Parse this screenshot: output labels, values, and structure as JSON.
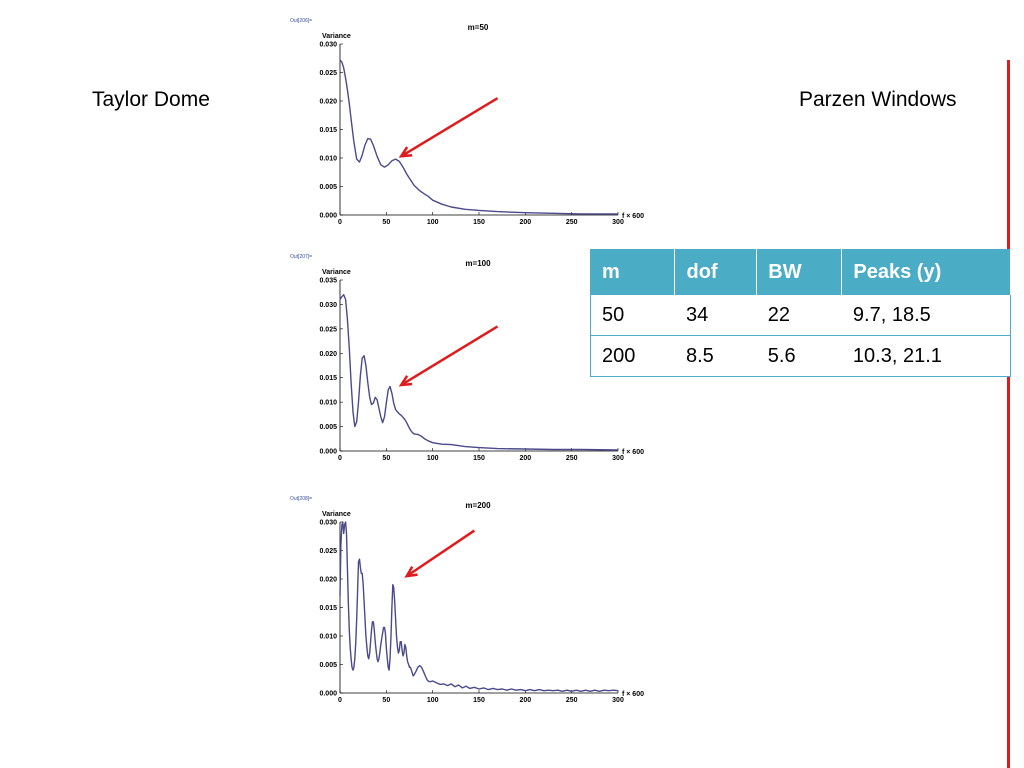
{
  "labels": {
    "left": "Taylor Dome",
    "right": "Parzen Windows"
  },
  "colors": {
    "curve": "#4a4a8c",
    "arrow": "#e01b1b",
    "table_header": "#4bacc6",
    "divider": "#e01b1b"
  },
  "table": {
    "headers": [
      "m",
      "dof",
      "BW",
      "Peaks (y)"
    ],
    "rows": [
      [
        "50",
        "34",
        "22",
        "9.7, 18.5"
      ],
      [
        "200",
        "8.5",
        "5.6",
        "10.3, 21.1"
      ]
    ]
  },
  "chart_data": [
    {
      "type": "line",
      "out_tag": "Out[206]=",
      "title": "m=50",
      "ylabel": "Variance",
      "xlabel": "f × 600",
      "xlim": [
        0,
        300
      ],
      "ylim": [
        0,
        0.03
      ],
      "xticks": [
        "0",
        "50",
        "100",
        "150",
        "200",
        "250",
        "300"
      ],
      "yticks": [
        "0.000",
        "0.005",
        "0.010",
        "0.015",
        "0.020",
        "0.025",
        "0.030"
      ],
      "x": [
        0,
        2,
        4,
        6,
        8,
        10,
        12,
        15,
        18,
        21,
        24,
        27,
        30,
        33,
        36,
        40,
        44,
        48,
        52,
        56,
        60,
        64,
        68,
        72,
        76,
        80,
        85,
        90,
        95,
        100,
        110,
        120,
        135,
        150,
        170,
        200,
        230,
        260,
        300
      ],
      "y": [
        0.0272,
        0.0268,
        0.0258,
        0.024,
        0.022,
        0.0195,
        0.0168,
        0.0128,
        0.0098,
        0.0093,
        0.0105,
        0.0123,
        0.0134,
        0.0133,
        0.0122,
        0.0103,
        0.0088,
        0.0084,
        0.0088,
        0.0095,
        0.0098,
        0.0094,
        0.0084,
        0.0072,
        0.0062,
        0.0052,
        0.0044,
        0.0038,
        0.0033,
        0.0026,
        0.0019,
        0.0014,
        0.001,
        0.0008,
        0.0006,
        0.0004,
        0.0003,
        0.0002,
        0.0002
      ],
      "arrow": {
        "from": [
          170,
          0.0205
        ],
        "to": [
          66,
          0.0103
        ]
      }
    },
    {
      "type": "line",
      "out_tag": "Out[207]=",
      "title": "m=100",
      "ylabel": "Variance",
      "xlabel": "f × 600",
      "xlim": [
        0,
        300
      ],
      "ylim": [
        0,
        0.035
      ],
      "xticks": [
        "0",
        "50",
        "100",
        "150",
        "200",
        "250",
        "300"
      ],
      "yticks": [
        "0.000",
        "0.005",
        "0.010",
        "0.015",
        "0.020",
        "0.025",
        "0.030",
        "0.035"
      ],
      "x": [
        0,
        2,
        4,
        6,
        8,
        10,
        12,
        14,
        16,
        18,
        20,
        22,
        24,
        26,
        28,
        30,
        32,
        34,
        36,
        38,
        40,
        42,
        44,
        46,
        48,
        50,
        52,
        54,
        56,
        58,
        60,
        62,
        64,
        66,
        68,
        70,
        72,
        74,
        76,
        78,
        80,
        84,
        88,
        92,
        96,
        100,
        110,
        120,
        135,
        150,
        170,
        200,
        230,
        260,
        300
      ],
      "y": [
        0.031,
        0.0316,
        0.032,
        0.031,
        0.027,
        0.021,
        0.014,
        0.008,
        0.005,
        0.006,
        0.01,
        0.0155,
        0.019,
        0.0195,
        0.0175,
        0.014,
        0.011,
        0.0095,
        0.0098,
        0.011,
        0.0105,
        0.0088,
        0.007,
        0.0058,
        0.007,
        0.0098,
        0.0125,
        0.0132,
        0.0118,
        0.0098,
        0.0085,
        0.008,
        0.0076,
        0.0073,
        0.0069,
        0.0064,
        0.0058,
        0.005,
        0.0043,
        0.0038,
        0.0035,
        0.0034,
        0.003,
        0.0024,
        0.002,
        0.0017,
        0.0014,
        0.0013,
        0.0009,
        0.0007,
        0.0005,
        0.0004,
        0.0003,
        0.0003,
        0.0002
      ],
      "arrow": {
        "from": [
          170,
          0.0255
        ],
        "to": [
          66,
          0.0135
        ]
      }
    },
    {
      "type": "line",
      "out_tag": "Out[208]=",
      "title": "m=200",
      "ylabel": "Variance",
      "xlabel": "f × 600",
      "xlim": [
        0,
        300
      ],
      "ylim": [
        0,
        0.03
      ],
      "xticks": [
        "0",
        "50",
        "100",
        "150",
        "200",
        "250",
        "300"
      ],
      "yticks": [
        "0.000",
        "0.005",
        "0.010",
        "0.015",
        "0.020",
        "0.025",
        "0.030"
      ],
      "x": [
        0,
        1,
        2,
        3,
        4,
        5,
        6,
        7,
        8,
        9,
        10,
        11,
        12,
        13,
        14,
        15,
        16,
        17,
        18,
        19,
        20,
        21,
        22,
        23,
        24,
        25,
        26,
        27,
        28,
        29,
        30,
        31,
        32,
        33,
        34,
        35,
        36,
        37,
        38,
        39,
        40,
        41,
        42,
        43,
        44,
        45,
        46,
        47,
        48,
        49,
        50,
        51,
        52,
        53,
        54,
        55,
        56,
        57,
        58,
        59,
        60,
        61,
        62,
        63,
        64,
        65,
        66,
        67,
        68,
        69,
        70,
        71,
        72,
        73,
        74,
        75,
        76,
        77,
        78,
        79,
        80,
        82,
        84,
        86,
        88,
        90,
        92,
        94,
        96,
        98,
        100,
        104,
        108,
        112,
        116,
        120,
        124,
        128,
        132,
        136,
        140,
        145,
        150,
        155,
        160,
        165,
        170,
        175,
        180,
        185,
        190,
        195,
        200,
        205,
        210,
        215,
        220,
        225,
        230,
        235,
        240,
        245,
        250,
        255,
        260,
        265,
        270,
        275,
        280,
        285,
        290,
        295,
        300
      ],
      "y": [
        0.017,
        0.026,
        0.0295,
        0.03,
        0.028,
        0.0295,
        0.03,
        0.028,
        0.022,
        0.016,
        0.011,
        0.008,
        0.006,
        0.0045,
        0.004,
        0.0045,
        0.006,
        0.009,
        0.013,
        0.018,
        0.023,
        0.0235,
        0.022,
        0.021,
        0.021,
        0.019,
        0.016,
        0.013,
        0.01,
        0.008,
        0.0065,
        0.006,
        0.007,
        0.009,
        0.011,
        0.0125,
        0.0125,
        0.011,
        0.009,
        0.0075,
        0.006,
        0.0055,
        0.006,
        0.007,
        0.0085,
        0.0095,
        0.0105,
        0.0115,
        0.0115,
        0.0105,
        0.008,
        0.006,
        0.0045,
        0.004,
        0.006,
        0.01,
        0.015,
        0.019,
        0.0185,
        0.016,
        0.013,
        0.01,
        0.008,
        0.007,
        0.0075,
        0.009,
        0.009,
        0.0075,
        0.0065,
        0.007,
        0.0085,
        0.008,
        0.0065,
        0.0055,
        0.005,
        0.0045,
        0.0045,
        0.004,
        0.0035,
        0.003,
        0.0032,
        0.0038,
        0.0045,
        0.0048,
        0.0045,
        0.0038,
        0.003,
        0.0023,
        0.002,
        0.002,
        0.0021,
        0.0018,
        0.0015,
        0.0016,
        0.0013,
        0.0016,
        0.0011,
        0.0014,
        0.0009,
        0.0012,
        0.0008,
        0.001,
        0.0007,
        0.0009,
        0.0006,
        0.0008,
        0.0006,
        0.0007,
        0.0005,
        0.0007,
        0.0005,
        0.0006,
        0.0004,
        0.0006,
        0.0004,
        0.0006,
        0.0004,
        0.0005,
        0.0004,
        0.0005,
        0.0003,
        0.0005,
        0.0003,
        0.0005,
        0.0003,
        0.0005,
        0.0003,
        0.0005,
        0.0003,
        0.0005,
        0.0004,
        0.0005,
        0.0004
      ],
      "arrow": {
        "from": [
          145,
          0.0285
        ],
        "to": [
          72,
          0.0205
        ]
      }
    }
  ]
}
